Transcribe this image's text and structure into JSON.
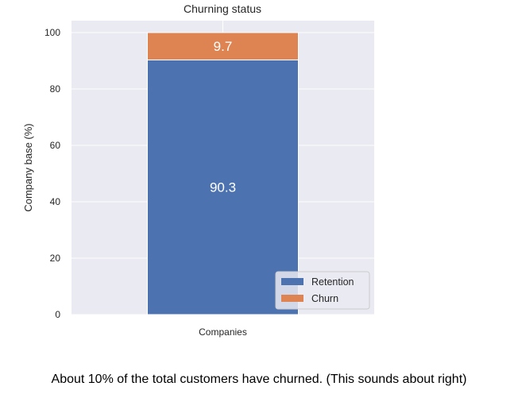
{
  "chart_data": {
    "type": "bar",
    "stacked": true,
    "title": "Churning status",
    "ylabel": "Company base (%)",
    "xlabel": "",
    "categories": [
      "Companies"
    ],
    "ylim": [
      0,
      100
    ],
    "yticks": [
      0,
      20,
      40,
      60,
      80,
      100
    ],
    "grid": true,
    "legend_position": "bottom-right",
    "series": [
      {
        "name": "Retention",
        "values": [
          90.3
        ],
        "label": "90.3",
        "color": "#4c72b0"
      },
      {
        "name": "Churn",
        "values": [
          9.7
        ],
        "label": "9.7",
        "color": "#dd8452"
      }
    ]
  },
  "caption": "About 10% of the total customers have churned. (This sounds about right)"
}
